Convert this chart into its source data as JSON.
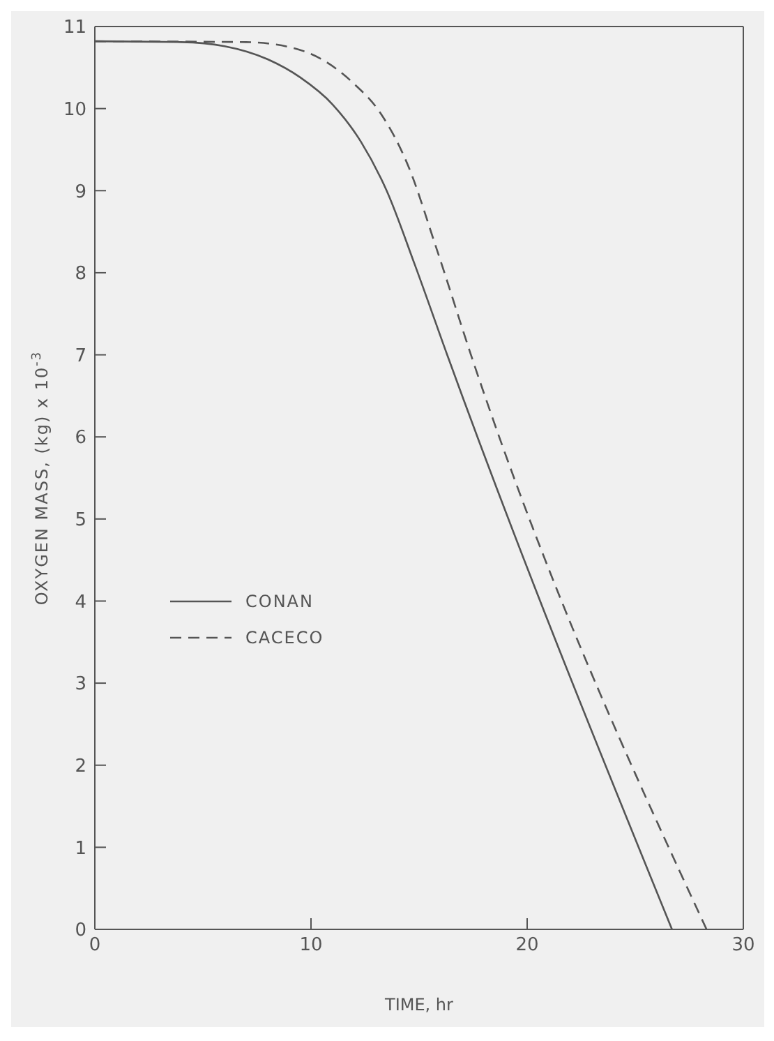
{
  "chart_data": {
    "type": "line",
    "xlabel": "TIME, hr",
    "ylabel": "OXYGEN MASS, (kg) x 10$^{-3}$",
    "xlim": [
      0,
      30
    ],
    "xticks": [
      0,
      10,
      20,
      30
    ],
    "ylim": [
      0,
      11
    ],
    "yticks": [
      0,
      1,
      2,
      3,
      4,
      5,
      6,
      7,
      8,
      9,
      10,
      11
    ],
    "legend": "bottom left",
    "series": [
      {
        "name": "CONAN",
        "color": "#555555",
        "line_style": "solid",
        "x": [
          0,
          4,
          6,
          8,
          9.5,
          11,
          12.3,
          13.5,
          14.8,
          16.3,
          26.7
        ],
        "values": [
          10.82,
          10.81,
          10.76,
          10.6,
          10.38,
          10.05,
          9.6,
          9.0,
          8.1,
          7.0,
          0
        ]
      },
      {
        "name": "CACECO",
        "color": "#555555",
        "line_style": "dashed",
        "x": [
          0,
          7,
          9,
          10.5,
          12,
          13.2,
          14.5,
          15.8,
          17.4,
          28.3
        ],
        "values": [
          10.82,
          10.81,
          10.75,
          10.6,
          10.3,
          9.95,
          9.3,
          8.3,
          7.0,
          0
        ]
      }
    ]
  }
}
